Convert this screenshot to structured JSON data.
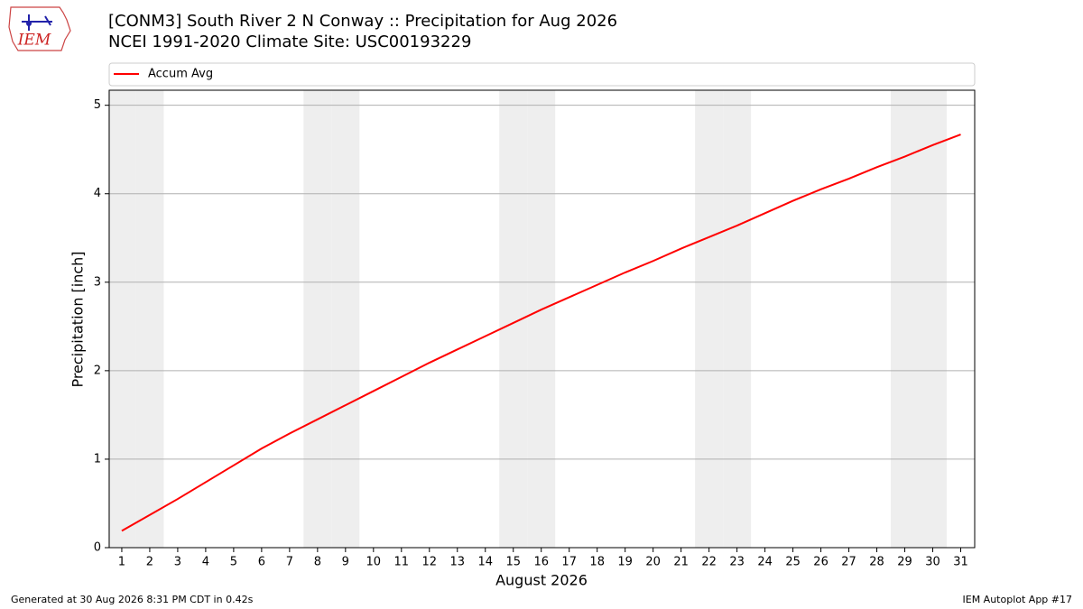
{
  "logo": {
    "text": "IEM"
  },
  "chart_data": {
    "type": "line",
    "title": "[CONM3] South River 2 N Conway :: Precipitation for Aug 2026",
    "subtitle": "NCEI 1991-2020 Climate Site: USC00193229",
    "x_label": "August 2026",
    "y_label": "Precipitation [inch]",
    "x": [
      1,
      2,
      3,
      4,
      5,
      6,
      7,
      8,
      9,
      10,
      11,
      12,
      13,
      14,
      15,
      16,
      17,
      18,
      19,
      20,
      21,
      22,
      23,
      24,
      25,
      26,
      27,
      28,
      29,
      30,
      31
    ],
    "series": [
      {
        "name": "Accum Avg",
        "color": "#ff0000",
        "values": [
          0.19,
          0.37,
          0.55,
          0.74,
          0.93,
          1.12,
          1.29,
          1.45,
          1.61,
          1.77,
          1.93,
          2.09,
          2.24,
          2.39,
          2.54,
          2.69,
          2.83,
          2.97,
          3.11,
          3.24,
          3.38,
          3.51,
          3.64,
          3.78,
          3.92,
          4.05,
          4.17,
          4.3,
          4.42,
          4.55,
          4.67
        ]
      }
    ],
    "xlim": [
      0.55,
      31.5
    ],
    "xticks": [
      1,
      2,
      3,
      4,
      5,
      6,
      7,
      8,
      9,
      10,
      11,
      12,
      13,
      14,
      15,
      16,
      17,
      18,
      19,
      20,
      21,
      22,
      23,
      24,
      25,
      26,
      27,
      28,
      29,
      30,
      31
    ],
    "ylim": [
      0,
      5.17
    ],
    "yticks": [
      0,
      1,
      2,
      3,
      4,
      5
    ],
    "grid": "y",
    "shaded_x": [
      1,
      2,
      8,
      9,
      15,
      16,
      22,
      23,
      29,
      30
    ],
    "shade_color": "#eeeeee",
    "legend": "top"
  },
  "footer": {
    "left": "Generated at 30 Aug 2026 8:31 PM CDT in 0.42s",
    "right": "IEM Autoplot App #17"
  }
}
